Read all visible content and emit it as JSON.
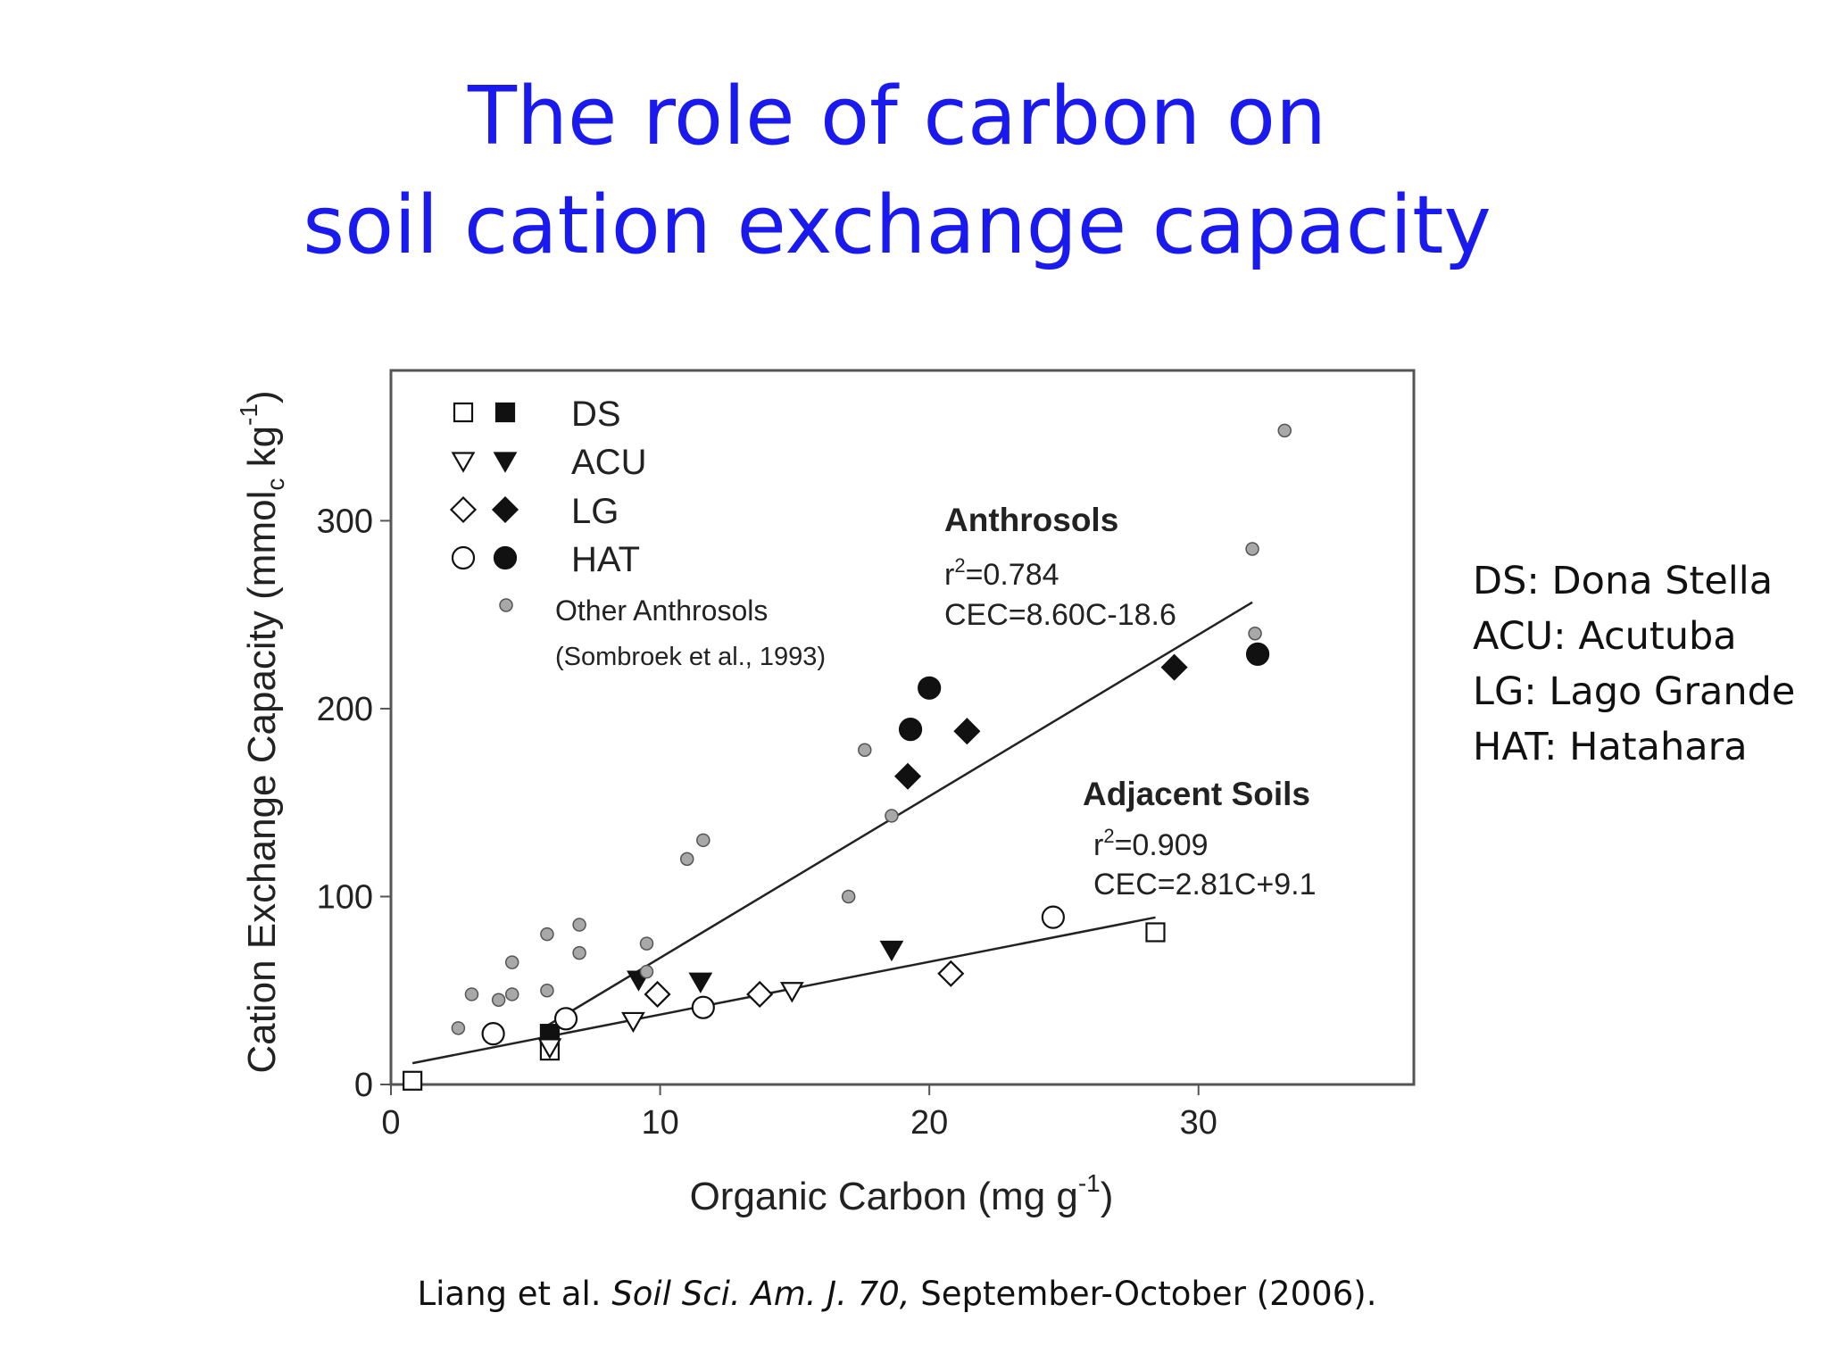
{
  "slide": {
    "title_line1": "The role of carbon on",
    "title_line2": "soil cation exchange capacity",
    "abbreviations": [
      "DS: Dona Stella",
      "ACU: Acutuba",
      "LG: Lago Grande",
      "HAT: Hatahara"
    ],
    "citation": {
      "part1": "Liang et al. ",
      "journal": "Soil Sci. Am. J. 70,",
      "part2": " September-October (2006)."
    }
  },
  "chart_data": {
    "type": "scatter",
    "xlabel": "Organic Carbon (mg g",
    "xlabel_sup": "-1",
    "xlabel_end": ")",
    "ylabel": "Cation Exchange Capacity (mmol",
    "ylabel_sub": "c",
    "ylabel_mid": " kg",
    "ylabel_sup": "-1",
    "ylabel_end": ")",
    "xlim": [
      0,
      38
    ],
    "ylim": [
      0,
      380
    ],
    "xticks": [
      0,
      10,
      20,
      30
    ],
    "yticks": [
      0,
      100,
      200,
      300
    ],
    "grid": false,
    "legend_position": "top-left",
    "legend": [
      {
        "label": "DS",
        "shape": "square"
      },
      {
        "label": "ACU",
        "shape": "triangle-down"
      },
      {
        "label": "LG",
        "shape": "diamond"
      },
      {
        "label": "HAT",
        "shape": "circle"
      }
    ],
    "legend_other": {
      "label": "Other Anthrosols",
      "note": "(Sombroek et al., 1993)"
    },
    "anthrosols_fit": {
      "title": "Anthrosols",
      "r2_label": "r",
      "r2_value": "=0.784",
      "equation": "CEC=8.60C-18.6",
      "slope": 8.6,
      "intercept": -18.6,
      "x_range": [
        5.8,
        32.0
      ]
    },
    "adjacent_fit": {
      "title": "Adjacent Soils",
      "r2_label": "r",
      "r2_value": "=0.909",
      "equation": "CEC=2.81C+9.1",
      "slope": 2.81,
      "intercept": 9.1,
      "x_range": [
        0.8,
        28.4
      ]
    },
    "series": [
      {
        "name": "DS",
        "shape": "square",
        "filled": false,
        "points": [
          [
            0.8,
            2
          ],
          [
            5.9,
            18
          ],
          [
            28.4,
            81
          ]
        ]
      },
      {
        "name": "DS",
        "shape": "square",
        "filled": true,
        "points": [
          [
            5.9,
            27
          ]
        ]
      },
      {
        "name": "ACU",
        "shape": "triangle-down",
        "filled": false,
        "points": [
          [
            5.9,
            20
          ],
          [
            9.0,
            34
          ],
          [
            14.9,
            50
          ]
        ]
      },
      {
        "name": "ACU",
        "shape": "triangle-down",
        "filled": true,
        "points": [
          [
            9.2,
            56
          ],
          [
            11.5,
            55
          ],
          [
            18.6,
            72
          ]
        ]
      },
      {
        "name": "LG",
        "shape": "diamond",
        "filled": false,
        "points": [
          [
            9.9,
            48
          ],
          [
            13.7,
            48
          ],
          [
            20.8,
            59
          ]
        ]
      },
      {
        "name": "LG",
        "shape": "diamond",
        "filled": true,
        "points": [
          [
            19.2,
            164
          ],
          [
            21.4,
            188
          ],
          [
            29.1,
            222
          ]
        ]
      },
      {
        "name": "HAT",
        "shape": "circle",
        "filled": false,
        "points": [
          [
            3.8,
            27
          ],
          [
            6.5,
            35
          ],
          [
            11.6,
            41
          ],
          [
            24.6,
            89
          ]
        ]
      },
      {
        "name": "HAT",
        "shape": "circle",
        "filled": true,
        "points": [
          [
            19.3,
            189
          ],
          [
            20.0,
            211
          ],
          [
            32.2,
            229
          ]
        ]
      },
      {
        "name": "Other Anthrosols",
        "shape": "circle-small",
        "filled": "gray",
        "points": [
          [
            2.5,
            30
          ],
          [
            3.0,
            48
          ],
          [
            4.0,
            45
          ],
          [
            4.5,
            48
          ],
          [
            4.5,
            65
          ],
          [
            5.8,
            80
          ],
          [
            5.8,
            50
          ],
          [
            7.0,
            85
          ],
          [
            7.0,
            70
          ],
          [
            9.5,
            75
          ],
          [
            9.5,
            60
          ],
          [
            11.0,
            120
          ],
          [
            11.6,
            130
          ],
          [
            17.0,
            100
          ],
          [
            17.6,
            178
          ],
          [
            18.6,
            143
          ],
          [
            32.0,
            285
          ],
          [
            32.1,
            240
          ],
          [
            33.2,
            348
          ]
        ]
      }
    ]
  }
}
